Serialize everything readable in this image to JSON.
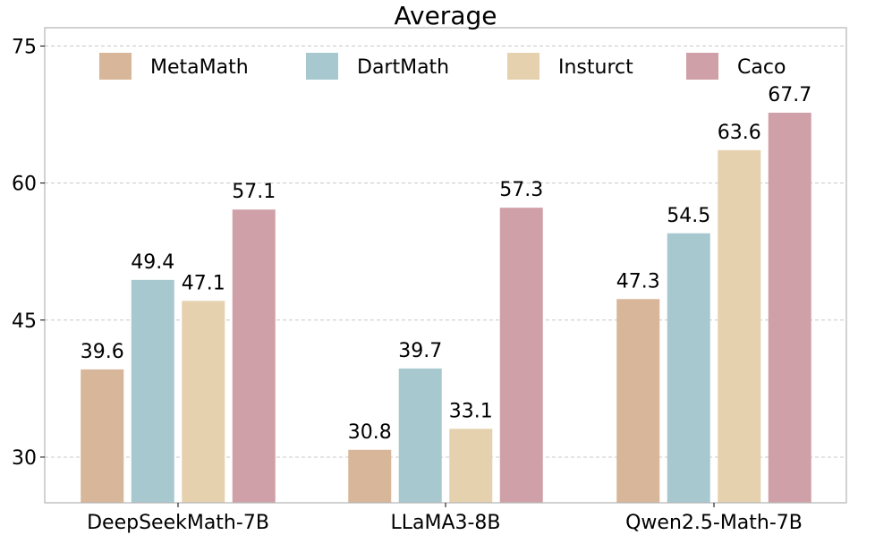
{
  "chart_data": {
    "type": "bar",
    "title": "Average",
    "xlabel": "",
    "ylabel": "",
    "ylim": [
      25,
      77
    ],
    "yticks": [
      30,
      45,
      60,
      75
    ],
    "grid": true,
    "legend": "top",
    "categories": [
      "DeepSeekMath-7B",
      "LLaMA3-8B",
      "Qwen2.5-Math-7B"
    ],
    "series": [
      {
        "name": "MetaMath",
        "color": "#d8b699",
        "values": [
          39.6,
          30.8,
          47.3
        ]
      },
      {
        "name": "DartMath",
        "color": "#a8c8d0",
        "values": [
          49.4,
          39.7,
          54.5
        ]
      },
      {
        "name": "Insturct",
        "color": "#e6d1af",
        "values": [
          47.1,
          33.1,
          63.6
        ]
      },
      {
        "name": "Caco",
        "color": "#d0a0a8",
        "values": [
          57.1,
          57.3,
          67.7
        ]
      }
    ]
  }
}
